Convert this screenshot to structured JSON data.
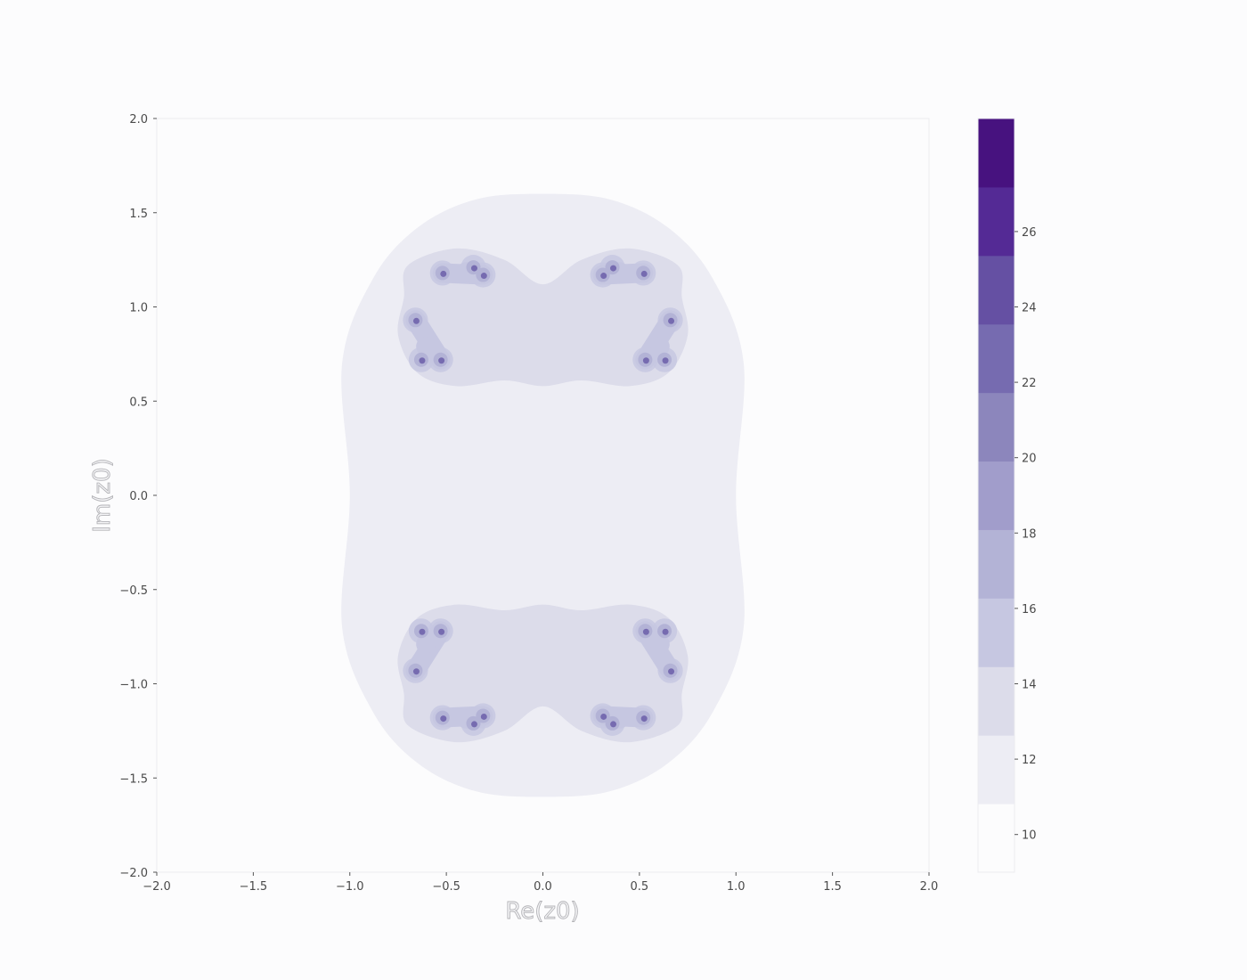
{
  "colors": {
    "background": "#fcfcfd",
    "levels": [
      "#fcfcfd",
      "#ededf4",
      "#dcdcea",
      "#c6c7e1",
      "#b3b3d6",
      "#a19dcb",
      "#8c86bc",
      "#766bb0",
      "#6550a3",
      "#542a95",
      "#47127f"
    ]
  },
  "chart_data": {
    "type": "heatmap",
    "title": "",
    "xlabel": "Re(z0)",
    "ylabel": "Im(z0)",
    "xlim": [
      -2.0,
      2.0
    ],
    "ylim": [
      -2.0,
      2.0
    ],
    "x_ticks": [
      {
        "value": -2.0,
        "label": "−2.0"
      },
      {
        "value": -1.5,
        "label": "−1.5"
      },
      {
        "value": -1.0,
        "label": "−1.0"
      },
      {
        "value": -0.5,
        "label": "−0.5"
      },
      {
        "value": 0.0,
        "label": "0.0"
      },
      {
        "value": 0.5,
        "label": "0.5"
      },
      {
        "value": 1.0,
        "label": "1.0"
      },
      {
        "value": 1.5,
        "label": "1.5"
      },
      {
        "value": 2.0,
        "label": "2.0"
      }
    ],
    "y_ticks": [
      {
        "value": -2.0,
        "label": "−2.0"
      },
      {
        "value": -1.5,
        "label": "−1.5"
      },
      {
        "value": -1.0,
        "label": "−1.0"
      },
      {
        "value": -0.5,
        "label": "−0.5"
      },
      {
        "value": 0.0,
        "label": "0.0"
      },
      {
        "value": 0.5,
        "label": "0.5"
      },
      {
        "value": 1.0,
        "label": "1.0"
      },
      {
        "value": 1.5,
        "label": "1.5"
      },
      {
        "value": 2.0,
        "label": "2.0"
      }
    ],
    "colorbar": {
      "range": [
        9,
        29
      ],
      "ticks": [
        {
          "value": 10,
          "label": "10"
        },
        {
          "value": 12,
          "label": "12"
        },
        {
          "value": 14,
          "label": "14"
        },
        {
          "value": 16,
          "label": "16"
        },
        {
          "value": 18,
          "label": "18"
        },
        {
          "value": 20,
          "label": "20"
        },
        {
          "value": 22,
          "label": "22"
        },
        {
          "value": 24,
          "label": "24"
        },
        {
          "value": 26,
          "label": "26"
        }
      ]
    },
    "regions": [
      {
        "name": "outer-lobe",
        "level": 12,
        "path": [
          [
            0.0,
            1.6
          ],
          [
            0.35,
            1.57
          ],
          [
            0.65,
            1.42
          ],
          [
            0.88,
            1.15
          ],
          [
            1.04,
            0.7
          ],
          [
            1.0,
            0.0
          ],
          [
            1.04,
            -0.7
          ],
          [
            0.88,
            -1.15
          ],
          [
            0.65,
            -1.42
          ],
          [
            0.35,
            -1.57
          ],
          [
            0.0,
            -1.6
          ],
          [
            -0.35,
            -1.57
          ],
          [
            -0.65,
            -1.42
          ],
          [
            -0.88,
            -1.15
          ],
          [
            -1.04,
            -0.7
          ],
          [
            -1.0,
            0.0
          ],
          [
            -1.04,
            0.7
          ],
          [
            -0.88,
            1.15
          ],
          [
            -0.65,
            1.42
          ],
          [
            -0.35,
            1.57
          ]
        ]
      },
      {
        "name": "upper-bulb",
        "level": 13,
        "path": [
          [
            0.0,
            1.12
          ],
          [
            0.2,
            1.25
          ],
          [
            0.45,
            1.31
          ],
          [
            0.7,
            1.22
          ],
          [
            0.72,
            1.05
          ],
          [
            0.75,
            0.85
          ],
          [
            0.65,
            0.65
          ],
          [
            0.45,
            0.58
          ],
          [
            0.2,
            0.61
          ],
          [
            0.0,
            0.58
          ],
          [
            -0.2,
            0.61
          ],
          [
            -0.45,
            0.58
          ],
          [
            -0.65,
            0.65
          ],
          [
            -0.75,
            0.85
          ],
          [
            -0.72,
            1.05
          ],
          [
            -0.7,
            1.22
          ],
          [
            -0.45,
            1.31
          ],
          [
            -0.2,
            1.25
          ]
        ]
      },
      {
        "name": "lower-bulb",
        "level": 13,
        "path": [
          [
            0.0,
            -1.12
          ],
          [
            0.2,
            -1.25
          ],
          [
            0.45,
            -1.31
          ],
          [
            0.7,
            -1.22
          ],
          [
            0.72,
            -1.05
          ],
          [
            0.75,
            -0.85
          ],
          [
            0.65,
            -0.65
          ],
          [
            0.45,
            -0.58
          ],
          [
            0.2,
            -0.61
          ],
          [
            0.0,
            -0.58
          ],
          [
            -0.2,
            -0.61
          ],
          [
            -0.45,
            -0.58
          ],
          [
            -0.65,
            -0.65
          ],
          [
            -0.75,
            -0.85
          ],
          [
            -0.72,
            -1.05
          ],
          [
            -0.7,
            -1.22
          ],
          [
            -0.45,
            -1.31
          ],
          [
            -0.2,
            -1.25
          ]
        ]
      }
    ],
    "clusters": [
      {
        "name": "upper-left-top",
        "level": 15,
        "x": -0.45,
        "y": 1.17,
        "dots": [
          [
            -0.52,
            1.18
          ],
          [
            -0.36,
            1.21
          ],
          [
            -0.31,
            1.17
          ]
        ]
      },
      {
        "name": "upper-right-top",
        "level": 15,
        "x": 0.45,
        "y": 1.17,
        "dots": [
          [
            0.52,
            1.18
          ],
          [
            0.36,
            1.21
          ],
          [
            0.31,
            1.17
          ]
        ]
      },
      {
        "name": "upper-left-side",
        "level": 15,
        "x": -0.62,
        "y": 0.83,
        "dots": [
          [
            -0.66,
            0.93
          ],
          [
            -0.63,
            0.72
          ],
          [
            -0.53,
            0.72
          ]
        ]
      },
      {
        "name": "upper-right-side",
        "level": 15,
        "x": 0.62,
        "y": 0.83,
        "dots": [
          [
            0.66,
            0.93
          ],
          [
            0.63,
            0.72
          ],
          [
            0.53,
            0.72
          ]
        ]
      },
      {
        "name": "lower-left-side",
        "level": 15,
        "x": -0.62,
        "y": -0.83,
        "dots": [
          [
            -0.66,
            -0.93
          ],
          [
            -0.63,
            -0.72
          ],
          [
            -0.53,
            -0.72
          ]
        ]
      },
      {
        "name": "lower-right-side",
        "level": 15,
        "x": 0.62,
        "y": -0.83,
        "dots": [
          [
            0.66,
            -0.93
          ],
          [
            0.63,
            -0.72
          ],
          [
            0.53,
            -0.72
          ]
        ]
      },
      {
        "name": "lower-left-bottom",
        "level": 15,
        "x": -0.45,
        "y": -1.17,
        "dots": [
          [
            -0.52,
            -1.18
          ],
          [
            -0.36,
            -1.21
          ],
          [
            -0.31,
            -1.17
          ]
        ]
      },
      {
        "name": "lower-right-bottom",
        "level": 15,
        "x": 0.45,
        "y": -1.17,
        "dots": [
          [
            0.52,
            -1.18
          ],
          [
            0.36,
            -1.21
          ],
          [
            0.31,
            -1.17
          ]
        ]
      }
    ]
  }
}
